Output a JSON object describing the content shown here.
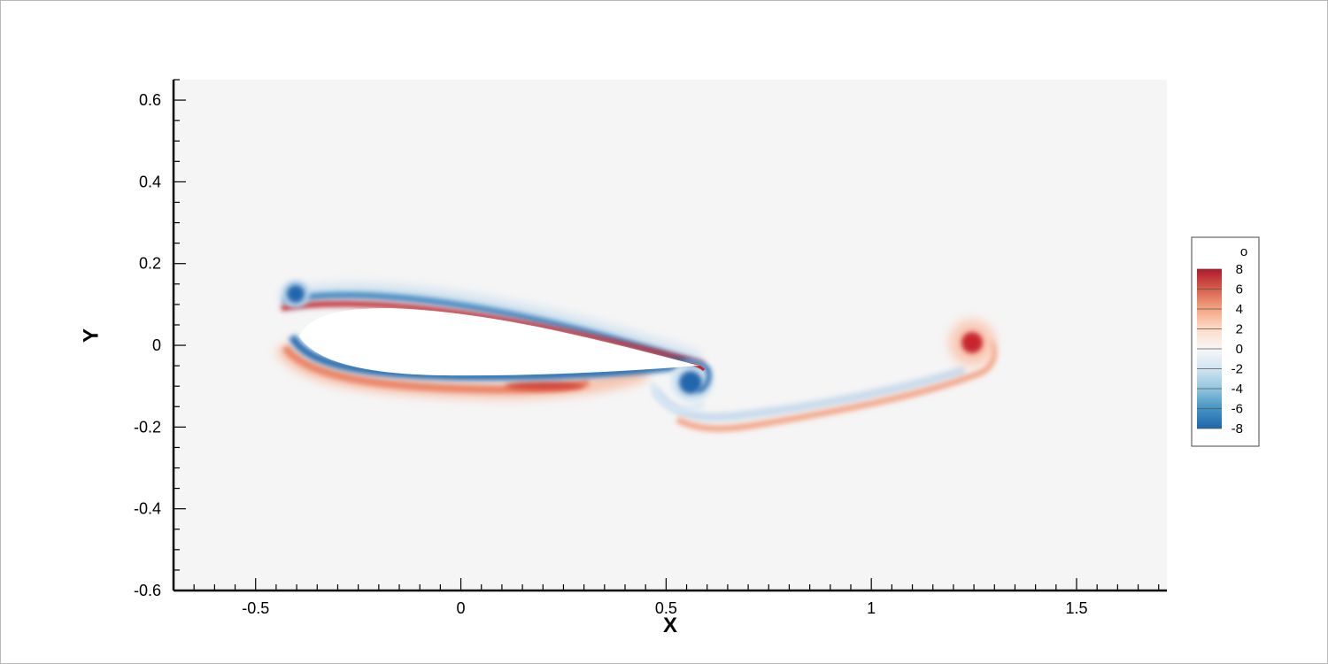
{
  "chart_data": {
    "type": "heatmap",
    "xlabel": "X",
    "ylabel": "Y",
    "xlim": [
      -0.7,
      1.72
    ],
    "ylim": [
      -0.6,
      0.65
    ],
    "x_ticks": [
      -0.5,
      0,
      0.5,
      1,
      1.5
    ],
    "x_tick_labels": [
      "-0.5",
      "0",
      "0.5",
      "1",
      "1.5"
    ],
    "y_ticks": [
      0.6,
      0.4,
      0.2,
      0,
      -0.2,
      -0.4,
      -0.6
    ],
    "y_tick_labels": [
      "0.6",
      "0.4",
      "0.2",
      "0",
      "-0.2",
      "-0.4",
      "-0.6"
    ],
    "legend": {
      "title": "o",
      "placement": "right",
      "levels": [
        8,
        6,
        4,
        2,
        0,
        -2,
        -4,
        -6,
        -8
      ],
      "labels": [
        "8",
        "6",
        "4",
        "2",
        "0",
        "-2",
        "-4",
        "-6",
        "-8"
      ],
      "range": [
        -8,
        8
      ]
    },
    "colors": {
      "positive": "#c8262e",
      "negative": "#2166ac",
      "background": "#f5f5f5",
      "body": "#ffffff"
    },
    "features": [
      {
        "name": "airfoil",
        "x_range": [
          -0.42,
          0.62
        ],
        "y_range": [
          -0.09,
          0.09
        ]
      },
      {
        "name": "leading-edge vortex",
        "x": -0.4,
        "y": 0.125,
        "value": -8
      },
      {
        "name": "trailing-edge vortex",
        "x": 0.57,
        "y": -0.09,
        "value": -8
      },
      {
        "name": "starting vortex",
        "x": 1.26,
        "y": 0.005,
        "value": 8
      }
    ]
  }
}
